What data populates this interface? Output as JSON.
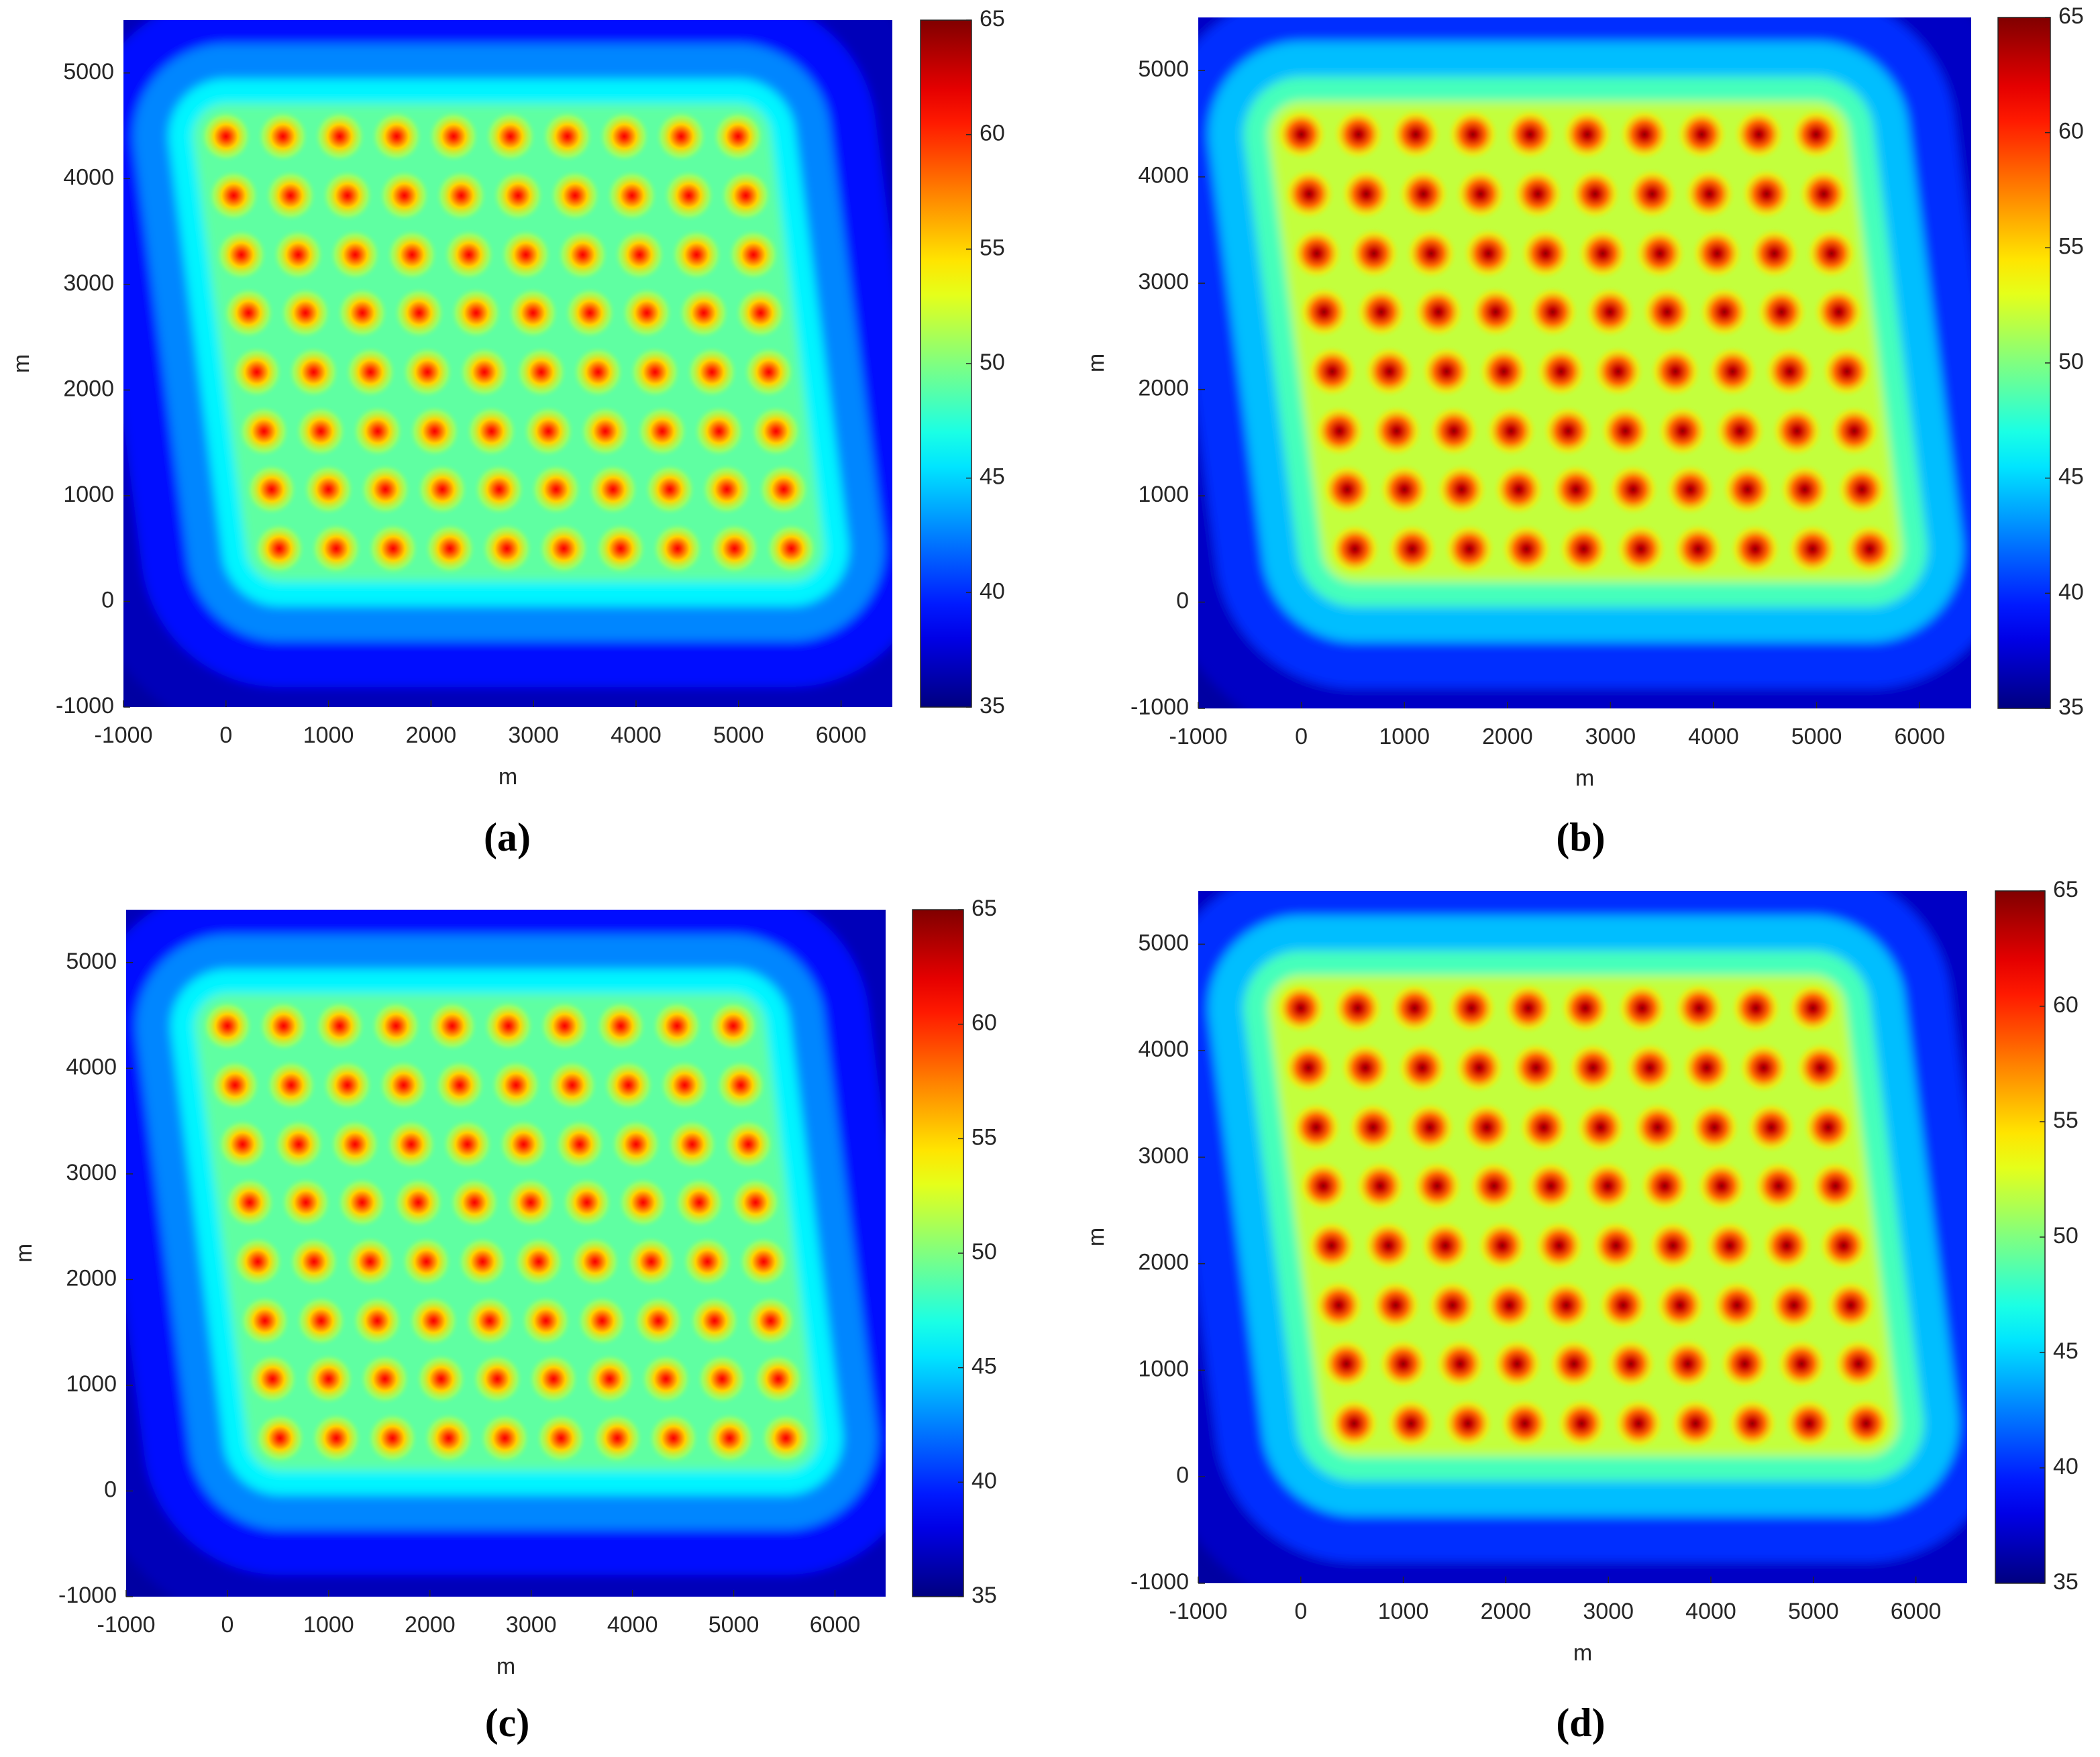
{
  "chart_data": [
    {
      "type": "heatmap",
      "panel_label": "(a)",
      "x_label": "m",
      "y_label": "m",
      "xlim": [
        -1000,
        6500
      ],
      "xticks": [
        -1000,
        0,
        1000,
        2000,
        3000,
        4000,
        5000,
        6000
      ],
      "ylim": [
        -1000,
        5500
      ],
      "yticks": [
        -1000,
        0,
        1000,
        2000,
        3000,
        4000,
        5000
      ],
      "colormap": "jet",
      "clim": [
        35,
        65
      ],
      "cticks": [
        35,
        40,
        45,
        50,
        55,
        60,
        65
      ],
      "farm_level": 49,
      "turbine_level": 60,
      "turbines": {
        "y": [
          4400,
          3840,
          3280,
          2730,
          2170,
          1610,
          1060,
          500
        ],
        "x": [
          [
            0,
            555,
            1110,
            1665,
            2220,
            2775,
            3330,
            3885,
            4440,
            4995
          ],
          [
            75,
            630,
            1185,
            1740,
            2295,
            2850,
            3405,
            3960,
            4515,
            5070
          ],
          [
            150,
            705,
            1260,
            1815,
            2370,
            2925,
            3480,
            4035,
            4590,
            5145
          ],
          [
            220,
            775,
            1330,
            1885,
            2440,
            2995,
            3550,
            4105,
            4660,
            5215
          ],
          [
            300,
            855,
            1410,
            1965,
            2520,
            3075,
            3630,
            4185,
            4740,
            5295
          ],
          [
            370,
            925,
            1480,
            2035,
            2590,
            3145,
            3700,
            4255,
            4810,
            5365
          ],
          [
            445,
            1000,
            1555,
            2110,
            2665,
            3220,
            3775,
            4330,
            4885,
            5440
          ],
          [
            520,
            1075,
            1630,
            2185,
            2740,
            3295,
            3850,
            4405,
            4960,
            5515
          ]
        ]
      }
    },
    {
      "type": "heatmap",
      "panel_label": "(b)",
      "x_label": "m",
      "y_label": "m",
      "xlim": [
        -1000,
        6500
      ],
      "xticks": [
        -1000,
        0,
        1000,
        2000,
        3000,
        4000,
        5000,
        6000
      ],
      "ylim": [
        -1000,
        5500
      ],
      "yticks": [
        -1000,
        0,
        1000,
        2000,
        3000,
        4000,
        5000
      ],
      "colormap": "jet",
      "clim": [
        35,
        65
      ],
      "cticks": [
        35,
        40,
        45,
        50,
        55,
        60,
        65
      ],
      "farm_level": 52,
      "turbine_level": 63,
      "turbines": {
        "y": [
          4400,
          3840,
          3280,
          2730,
          2170,
          1610,
          1060,
          500
        ],
        "x": [
          [
            0,
            555,
            1110,
            1665,
            2220,
            2775,
            3330,
            3885,
            4440,
            4995
          ],
          [
            75,
            630,
            1185,
            1740,
            2295,
            2850,
            3405,
            3960,
            4515,
            5070
          ],
          [
            150,
            705,
            1260,
            1815,
            2370,
            2925,
            3480,
            4035,
            4590,
            5145
          ],
          [
            220,
            775,
            1330,
            1885,
            2440,
            2995,
            3550,
            4105,
            4660,
            5215
          ],
          [
            300,
            855,
            1410,
            1965,
            2520,
            3075,
            3630,
            4185,
            4740,
            5295
          ],
          [
            370,
            925,
            1480,
            2035,
            2590,
            3145,
            3700,
            4255,
            4810,
            5365
          ],
          [
            445,
            1000,
            1555,
            2110,
            2665,
            3220,
            3775,
            4330,
            4885,
            5440
          ],
          [
            520,
            1075,
            1630,
            2185,
            2740,
            3295,
            3850,
            4405,
            4960,
            5515
          ]
        ]
      }
    },
    {
      "type": "heatmap",
      "panel_label": "(c)",
      "x_label": "m",
      "y_label": "m",
      "xlim": [
        -1000,
        6500
      ],
      "xticks": [
        -1000,
        0,
        1000,
        2000,
        3000,
        4000,
        5000,
        6000
      ],
      "ylim": [
        -1000,
        5500
      ],
      "yticks": [
        -1000,
        0,
        1000,
        2000,
        3000,
        4000,
        5000
      ],
      "colormap": "jet",
      "clim": [
        35,
        65
      ],
      "cticks": [
        35,
        40,
        45,
        50,
        55,
        60,
        65
      ],
      "farm_level": 49,
      "turbine_level": 60,
      "turbines": {
        "y": [
          4400,
          3840,
          3280,
          2730,
          2170,
          1610,
          1060,
          500
        ],
        "x": [
          [
            0,
            555,
            1110,
            1665,
            2220,
            2775,
            3330,
            3885,
            4440,
            4995
          ],
          [
            75,
            630,
            1185,
            1740,
            2295,
            2850,
            3405,
            3960,
            4515,
            5070
          ],
          [
            150,
            705,
            1260,
            1815,
            2370,
            2925,
            3480,
            4035,
            4590,
            5145
          ],
          [
            220,
            775,
            1330,
            1885,
            2440,
            2995,
            3550,
            4105,
            4660,
            5215
          ],
          [
            300,
            855,
            1410,
            1965,
            2520,
            3075,
            3630,
            4185,
            4740,
            5295
          ],
          [
            370,
            925,
            1480,
            2035,
            2590,
            3145,
            3700,
            4255,
            4810,
            5365
          ],
          [
            445,
            1000,
            1555,
            2110,
            2665,
            3220,
            3775,
            4330,
            4885,
            5440
          ],
          [
            520,
            1075,
            1630,
            2185,
            2740,
            3295,
            3850,
            4405,
            4960,
            5515
          ]
        ]
      }
    },
    {
      "type": "heatmap",
      "panel_label": "(d)",
      "x_label": "m",
      "y_label": "m",
      "xlim": [
        -1000,
        6500
      ],
      "xticks": [
        -1000,
        0,
        1000,
        2000,
        3000,
        4000,
        5000,
        6000
      ],
      "ylim": [
        -1000,
        5500
      ],
      "yticks": [
        -1000,
        0,
        1000,
        2000,
        3000,
        4000,
        5000
      ],
      "colormap": "jet",
      "clim": [
        35,
        65
      ],
      "cticks": [
        35,
        40,
        45,
        50,
        55,
        60,
        65
      ],
      "farm_level": 52,
      "turbine_level": 63,
      "turbines": {
        "y": [
          4400,
          3840,
          3280,
          2730,
          2170,
          1610,
          1060,
          500
        ],
        "x": [
          [
            0,
            555,
            1110,
            1665,
            2220,
            2775,
            3330,
            3885,
            4440,
            4995
          ],
          [
            75,
            630,
            1185,
            1740,
            2295,
            2850,
            3405,
            3960,
            4515,
            5070
          ],
          [
            150,
            705,
            1260,
            1815,
            2370,
            2925,
            3480,
            4035,
            4590,
            5145
          ],
          [
            220,
            775,
            1330,
            1885,
            2440,
            2995,
            3550,
            4105,
            4660,
            5215
          ],
          [
            300,
            855,
            1410,
            1965,
            2520,
            3075,
            3630,
            4185,
            4740,
            5295
          ],
          [
            370,
            925,
            1480,
            2035,
            2590,
            3145,
            3700,
            4255,
            4810,
            5365
          ],
          [
            445,
            1000,
            1555,
            2110,
            2665,
            3220,
            3775,
            4330,
            4885,
            5440
          ],
          [
            520,
            1075,
            1630,
            2185,
            2740,
            3295,
            3850,
            4405,
            4960,
            5515
          ]
        ]
      }
    }
  ]
}
